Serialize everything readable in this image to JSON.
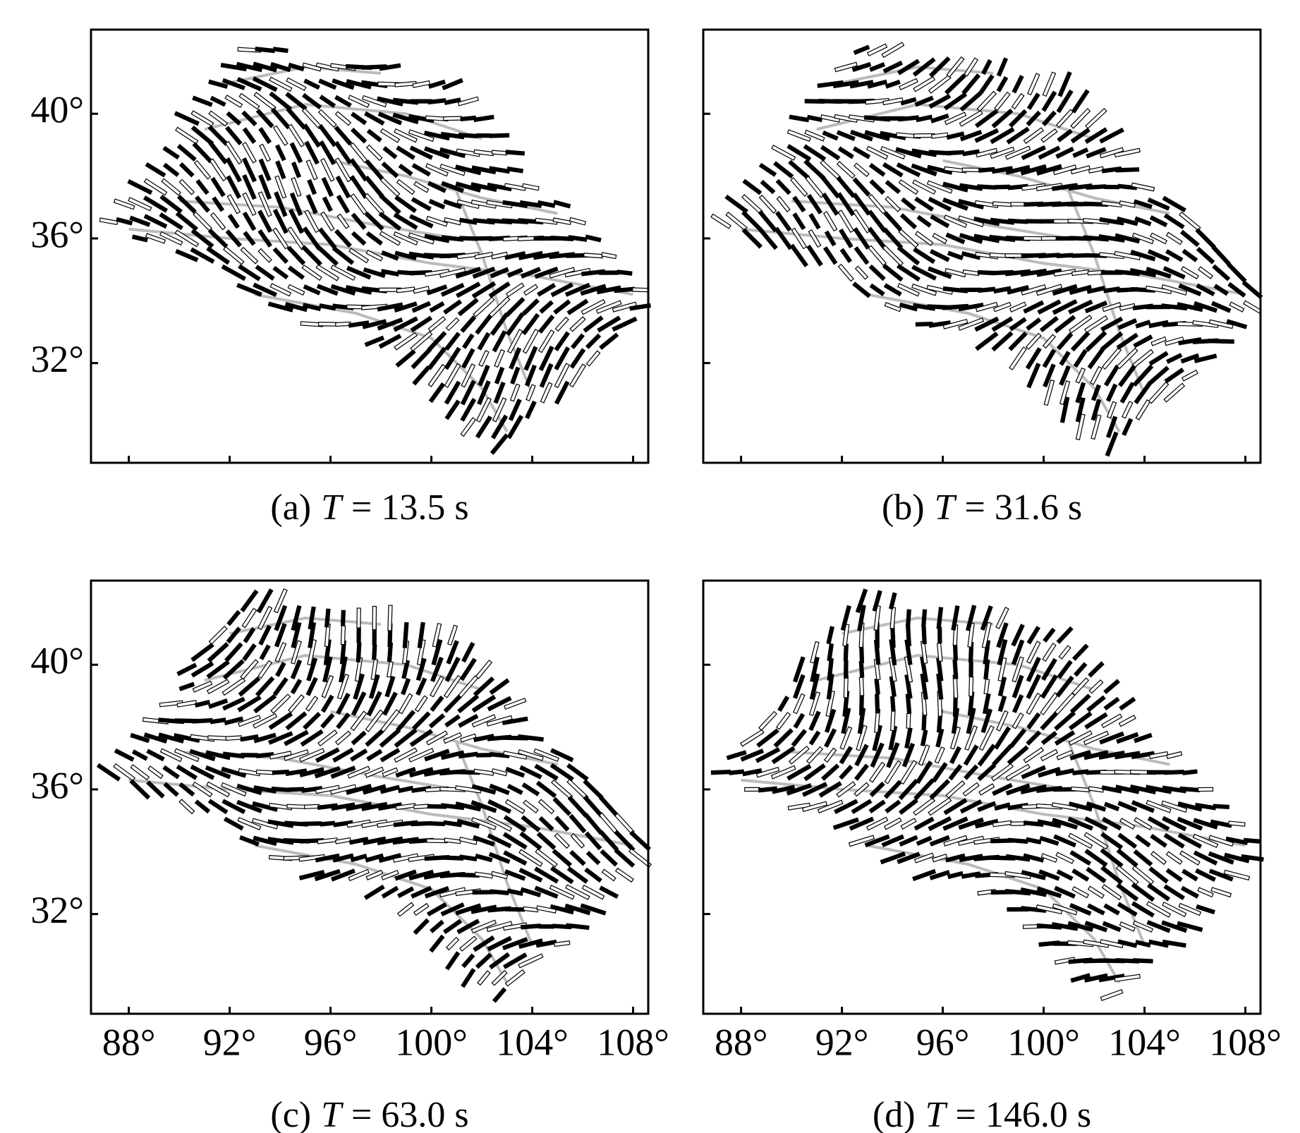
{
  "chart_data": [
    {
      "type": "map",
      "caption": {
        "label": "(a)",
        "symbol": "T",
        "text": "= 13.5 s"
      },
      "xlim": [
        86.5,
        108.6
      ],
      "ylim": [
        28.8,
        42.7
      ],
      "xticks": [
        {
          "value": 88,
          "label": "88°"
        },
        {
          "value": 92,
          "label": "92°"
        },
        {
          "value": 96,
          "label": "96°"
        },
        {
          "value": 100,
          "label": "100°"
        },
        {
          "value": 104,
          "label": "104°"
        },
        {
          "value": 108,
          "label": "108°"
        }
      ],
      "yticks": [
        {
          "value": 32,
          "label": "32°"
        },
        {
          "value": 36,
          "label": "36°"
        },
        {
          "value": 40,
          "label": "40°"
        }
      ],
      "x_tick_labels": false,
      "y_tick_labels": true
    },
    {
      "type": "map",
      "caption": {
        "label": "(b)",
        "symbol": "T",
        "text": "= 31.6 s"
      },
      "xlim": [
        86.5,
        108.6
      ],
      "ylim": [
        28.8,
        42.7
      ],
      "xticks": [
        {
          "value": 88,
          "label": "88°"
        },
        {
          "value": 92,
          "label": "92°"
        },
        {
          "value": 96,
          "label": "96°"
        },
        {
          "value": 100,
          "label": "100°"
        },
        {
          "value": 104,
          "label": "104°"
        },
        {
          "value": 108,
          "label": "108°"
        }
      ],
      "yticks": [
        {
          "value": 32,
          "label": "32°"
        },
        {
          "value": 36,
          "label": "36°"
        },
        {
          "value": 40,
          "label": "40°"
        }
      ],
      "x_tick_labels": false,
      "y_tick_labels": false
    },
    {
      "type": "map",
      "caption": {
        "label": "(c)",
        "symbol": "T",
        "text": "= 63.0 s"
      },
      "xlim": [
        86.5,
        108.6
      ],
      "ylim": [
        28.8,
        42.7
      ],
      "xticks": [
        {
          "value": 88,
          "label": "88°"
        },
        {
          "value": 92,
          "label": "92°"
        },
        {
          "value": 96,
          "label": "96°"
        },
        {
          "value": 100,
          "label": "100°"
        },
        {
          "value": 104,
          "label": "104°"
        },
        {
          "value": 108,
          "label": "108°"
        }
      ],
      "yticks": [
        {
          "value": 32,
          "label": "32°"
        },
        {
          "value": 36,
          "label": "36°"
        },
        {
          "value": 40,
          "label": "40°"
        }
      ],
      "x_tick_labels": true,
      "y_tick_labels": true
    },
    {
      "type": "map",
      "caption": {
        "label": "(d)",
        "symbol": "T",
        "text": "= 146.0 s"
      },
      "xlim": [
        86.5,
        108.6
      ],
      "ylim": [
        28.8,
        42.7
      ],
      "xticks": [
        {
          "value": 88,
          "label": "88°"
        },
        {
          "value": 92,
          "label": "92°"
        },
        {
          "value": 96,
          "label": "96°"
        },
        {
          "value": 100,
          "label": "100°"
        },
        {
          "value": 104,
          "label": "104°"
        },
        {
          "value": 108,
          "label": "108°"
        }
      ],
      "yticks": [
        {
          "value": 32,
          "label": "32°"
        },
        {
          "value": 36,
          "label": "36°"
        },
        {
          "value": 40,
          "label": "40°"
        }
      ],
      "x_tick_labels": true,
      "y_tick_labels": false
    }
  ]
}
